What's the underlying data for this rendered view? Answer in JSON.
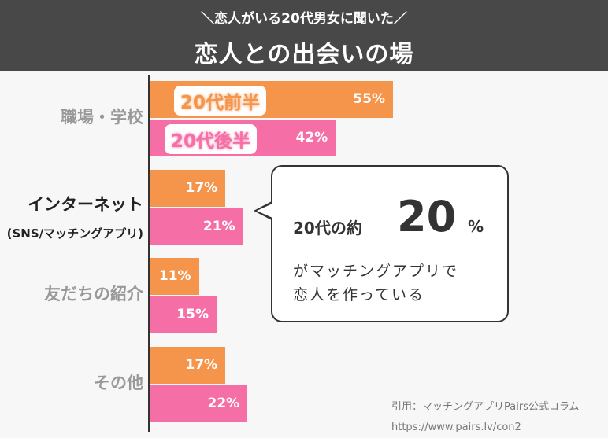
{
  "header": {
    "subtitle": "＼恋人がいる20代男女に聞いた／",
    "title": "恋人との出会いの場"
  },
  "chart_data": {
    "type": "bar",
    "orientation": "horizontal",
    "xlim": [
      0,
      60
    ],
    "categories": [
      "職場・学校",
      "インターネット (SNS/マッチングアプリ)",
      "友だちの紹介",
      "その他"
    ],
    "category_lines": [
      [
        "職場・学校"
      ],
      [
        "インターネット",
        "(SNS/マッチングアプリ)"
      ],
      [
        "友だちの紹介"
      ],
      [
        "その他"
      ]
    ],
    "highlight_category": 1,
    "series": [
      {
        "name": "20代前半",
        "color": "#f5944b",
        "values": [
          55,
          17,
          11,
          17
        ]
      },
      {
        "name": "20代後半",
        "color": "#f56ea5",
        "values": [
          42,
          21,
          15,
          22
        ]
      }
    ],
    "unit": "%"
  },
  "callout": {
    "line1": "20代の約",
    "big": "20",
    "pct": "%",
    "line2": "がマッチングアプリで",
    "line3": "恋人を作っている"
  },
  "source": {
    "line1": "引用：マッチングアプリPairs公式コラム",
    "line2": "https://www.pairs.lv/con2"
  }
}
